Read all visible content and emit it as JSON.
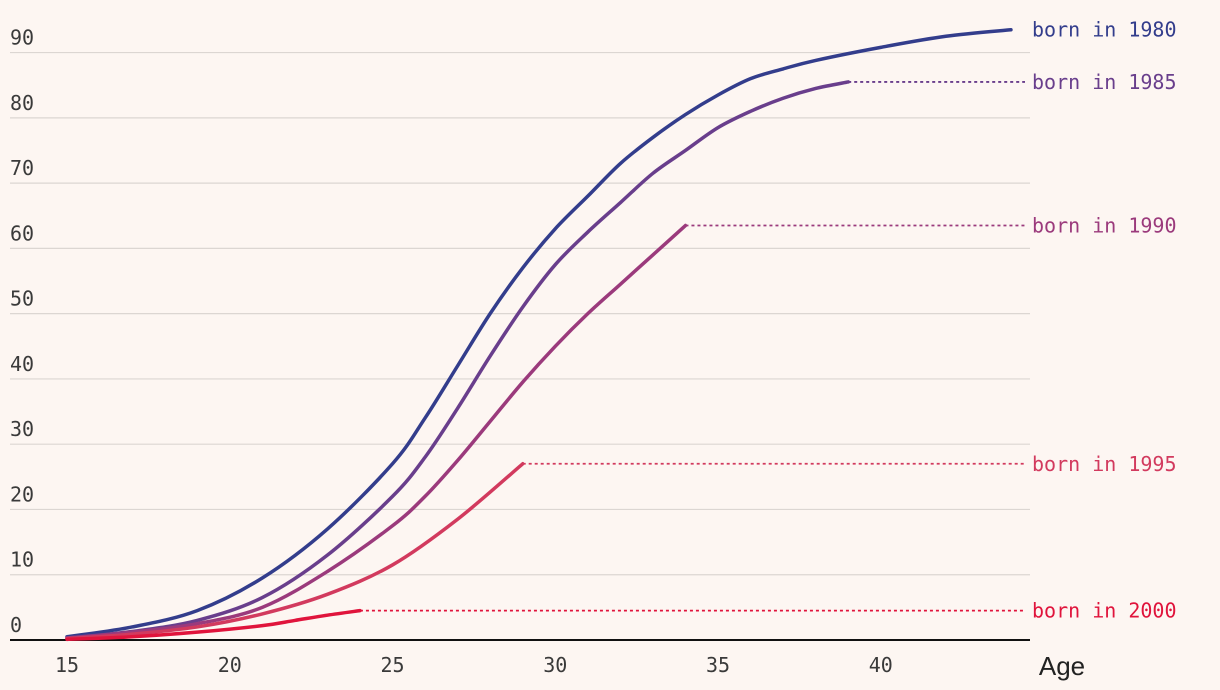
{
  "chart_data": {
    "type": "line",
    "title": "",
    "xlabel": "Age",
    "ylabel": "",
    "xlim": [
      15,
      44
    ],
    "ylim": [
      0,
      90
    ],
    "x_ticks": [
      15,
      20,
      25,
      30,
      35,
      40
    ],
    "y_ticks": [
      0,
      10,
      20,
      30,
      40,
      50,
      60,
      70,
      80,
      90
    ],
    "grid": "horizontal",
    "series": [
      {
        "name": "born in 1980",
        "color": "#333d8c",
        "x": [
          15,
          17,
          19,
          21,
          23,
          25,
          26,
          27,
          28,
          29,
          30,
          31,
          32,
          33,
          34,
          35,
          36,
          37,
          38,
          40,
          42,
          44
        ],
        "y": [
          0.5,
          2,
          4.5,
          9.5,
          17,
          27,
          34,
          42,
          50,
          57,
          63,
          68,
          73,
          77,
          80.5,
          83.5,
          86,
          87.5,
          88.8,
          90.8,
          92.5,
          93.5
        ]
      },
      {
        "name": "born in 1985",
        "color": "#693e8c",
        "x": [
          15,
          17,
          19,
          21,
          23,
          25,
          26,
          27,
          28,
          29,
          30,
          31,
          32,
          33,
          34,
          35,
          36,
          37,
          38,
          39
        ],
        "y": [
          0.3,
          1.3,
          3,
          6.5,
          13,
          22,
          28,
          35.5,
          43.5,
          51,
          57.5,
          62.5,
          67,
          71.5,
          75,
          78.5,
          81,
          83,
          84.5,
          85.5
        ]
      },
      {
        "name": "born in 1990",
        "color": "#9b3a7c",
        "x": [
          15,
          17,
          19,
          21,
          23,
          25,
          26,
          27,
          28,
          29,
          30,
          31,
          32,
          33,
          34
        ],
        "y": [
          0.3,
          1.2,
          2.5,
          5,
          10.5,
          17.5,
          22,
          27.5,
          33.5,
          39.5,
          45,
          50,
          54.5,
          59,
          63.5
        ]
      },
      {
        "name": "born in 1995",
        "color": "#d23a5e",
        "x": [
          15,
          17,
          19,
          21,
          23,
          25,
          27,
          29
        ],
        "y": [
          0.2,
          0.9,
          2,
          4,
          7,
          11.5,
          18.5,
          27
        ]
      },
      {
        "name": "born in 2000",
        "color": "#e0143c",
        "x": [
          15,
          17,
          19,
          21,
          22,
          23,
          24
        ],
        "y": [
          0.1,
          0.5,
          1.2,
          2.2,
          3,
          3.8,
          4.5
        ]
      }
    ]
  }
}
